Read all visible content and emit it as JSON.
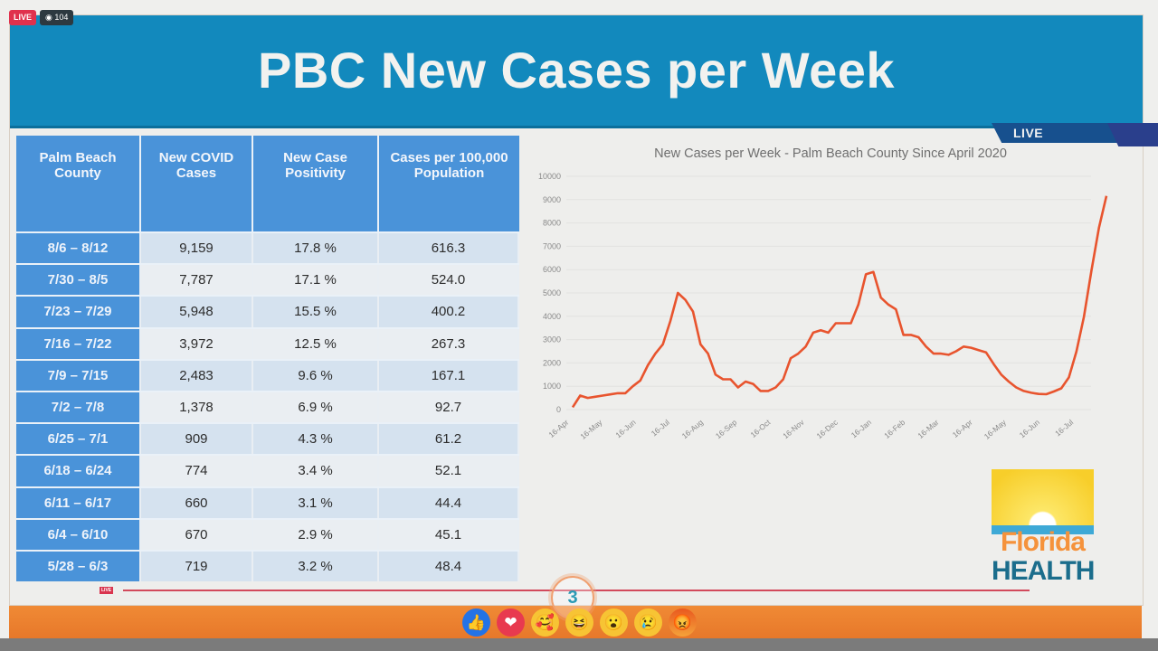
{
  "stream": {
    "live_label": "LIVE",
    "viewer_count": "104",
    "reaction_count": "3"
  },
  "slide": {
    "title": "PBC New Cases per Week",
    "live_tag": "LIVE",
    "logo": {
      "line1": "Florida",
      "line2": "HEALTH"
    }
  },
  "table": {
    "headers": [
      "Palm Beach County",
      "New COVID Cases",
      "New Case Positivity",
      "Cases per 100,000 Population"
    ],
    "rows": [
      [
        "8/6 – 8/12",
        "9,159",
        "17.8 %",
        "616.3"
      ],
      [
        "7/30 – 8/5",
        "7,787",
        "17.1 %",
        "524.0"
      ],
      [
        "7/23 – 7/29",
        "5,948",
        "15.5 %",
        "400.2"
      ],
      [
        "7/16 – 7/22",
        "3,972",
        "12.5 %",
        "267.3"
      ],
      [
        "7/9 – 7/15",
        "2,483",
        "9.6 %",
        "167.1"
      ],
      [
        "7/2 – 7/8",
        "1,378",
        "6.9 %",
        "92.7"
      ],
      [
        "6/25 – 7/1",
        "909",
        "4.3 %",
        "61.2"
      ],
      [
        "6/18 – 6/24",
        "774",
        "3.4 %",
        "52.1"
      ],
      [
        "6/11 – 6/17",
        "660",
        "3.1 %",
        "44.4"
      ],
      [
        "6/4 – 6/10",
        "670",
        "2.9 %",
        "45.1"
      ],
      [
        "5/28 – 6/3",
        "719",
        "3.2 %",
        "48.4"
      ]
    ]
  },
  "chart_data": {
    "type": "line",
    "title": "New Cases per Week - Palm Beach County Since April 2020",
    "xlabel": "",
    "ylabel": "",
    "ylim": [
      0,
      10000
    ],
    "yticks": [
      0,
      1000,
      2000,
      3000,
      4000,
      5000,
      6000,
      7000,
      8000,
      9000,
      10000
    ],
    "xticks": [
      "16-Apr",
      "16-May",
      "16-Jun",
      "16-Jul",
      "16-Aug",
      "16-Sep",
      "16-Oct",
      "16-Nov",
      "16-Dec",
      "16-Jan",
      "16-Feb",
      "16-Mar",
      "16-Apr",
      "16-May",
      "16-Jun",
      "16-Jul"
    ],
    "grid": true,
    "legend": "none",
    "color": "#e8542e",
    "series": [
      {
        "name": "New Cases per Week",
        "values": [
          100,
          600,
          500,
          550,
          600,
          650,
          700,
          700,
          1000,
          1250,
          1900,
          2400,
          2800,
          3800,
          5000,
          4700,
          4200,
          2800,
          2400,
          1500,
          1300,
          1300,
          950,
          1200,
          1100,
          800,
          800,
          950,
          1300,
          2200,
          2400,
          2700,
          3300,
          3400,
          3300,
          3700,
          3700,
          3700,
          4500,
          5800,
          5900,
          4800,
          4500,
          4300,
          3200,
          3200,
          3100,
          2700,
          2400,
          2400,
          2350,
          2500,
          2700,
          2650,
          2550,
          2450,
          1950,
          1500,
          1200,
          950,
          800,
          719,
          670,
          660,
          774,
          909,
          1378,
          2483,
          3972,
          5948,
          7787,
          9159
        ]
      }
    ]
  },
  "reactions": [
    "like",
    "love",
    "care",
    "haha",
    "wow",
    "sad",
    "angry"
  ]
}
